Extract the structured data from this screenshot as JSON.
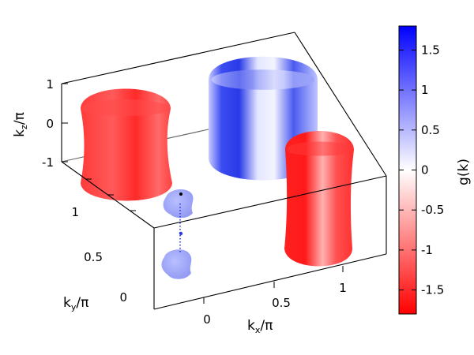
{
  "chart_data": {
    "type": "3d-surface",
    "xlabel": {
      "base": "k",
      "sub": "x",
      "tail": "/π"
    },
    "ylabel": {
      "base": "k",
      "sub": "y",
      "tail": "/π"
    },
    "zlabel": {
      "base": "k",
      "sub": "z",
      "tail": "/π"
    },
    "x_ticks": [
      "0",
      "0.5",
      "1"
    ],
    "y_ticks": [
      "0",
      "0.5",
      "1"
    ],
    "z_ticks": [
      "-1",
      "0",
      "1"
    ],
    "xlim": [
      -0.5,
      1.5
    ],
    "ylim": [
      -0.5,
      1.5
    ],
    "zlim": [
      -1,
      1
    ],
    "grid": false,
    "colorbar": {
      "label": "g(k)",
      "min": -1.8,
      "max": 1.8,
      "ticks": [
        "1.5",
        "1",
        "0.5",
        "0",
        "-0.5",
        "-1",
        "-1.5"
      ],
      "low_color": "#ff0000",
      "mid_color": "#ffffff",
      "high_color": "#0000ff"
    },
    "surfaces": [
      {
        "shape": "cylinder",
        "center": [
          0,
          1
        ],
        "g_sign": "negative",
        "color": "#ff3333"
      },
      {
        "shape": "cylinder",
        "center": [
          0.5,
          1.5
        ],
        "g_sign": "mixed",
        "color": "#3344ee"
      },
      {
        "shape": "cylinder",
        "center": [
          1.5,
          1
        ],
        "g_sign": "negative",
        "color": "#ff3333"
      },
      {
        "shape": "pocket",
        "center": [
          0,
          0
        ],
        "g_sign": "positive",
        "color": "#9fa6ff"
      }
    ]
  }
}
